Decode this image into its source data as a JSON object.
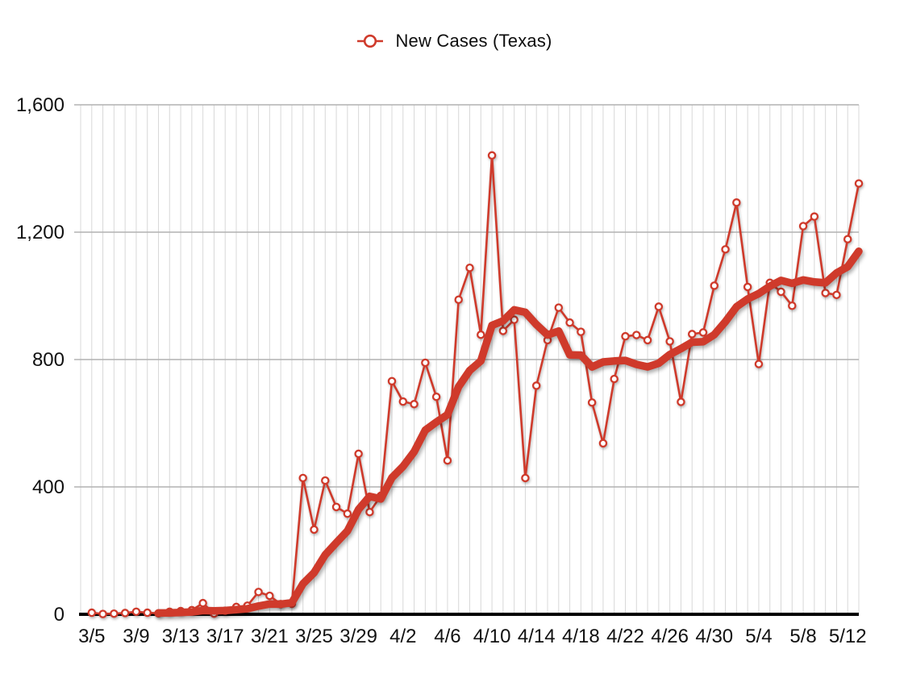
{
  "legend": {
    "label": "New Cases (Texas)"
  },
  "chart_data": {
    "type": "line",
    "title": "New Cases (Texas)",
    "legend_position": "top-center",
    "x": [
      "3/5",
      "3/6",
      "3/7",
      "3/8",
      "3/9",
      "3/10",
      "3/11",
      "3/12",
      "3/13",
      "3/14",
      "3/15",
      "3/16",
      "3/17",
      "3/18",
      "3/19",
      "3/20",
      "3/21",
      "3/22",
      "3/23",
      "3/24",
      "3/25",
      "3/26",
      "3/27",
      "3/28",
      "3/29",
      "3/30",
      "3/31",
      "4/1",
      "4/2",
      "4/3",
      "4/4",
      "4/5",
      "4/6",
      "4/7",
      "4/8",
      "4/9",
      "4/10",
      "4/11",
      "4/12",
      "4/13",
      "4/14",
      "4/15",
      "4/16",
      "4/17",
      "4/18",
      "4/19",
      "4/20",
      "4/21",
      "4/22",
      "4/23",
      "4/24",
      "4/25",
      "4/26",
      "4/27",
      "4/28",
      "4/29",
      "4/30",
      "5/1",
      "5/2",
      "5/3",
      "5/4",
      "5/5",
      "5/6",
      "5/7",
      "5/8",
      "5/9",
      "5/10",
      "5/11",
      "5/12",
      "5/13"
    ],
    "series": [
      {
        "name": "New Cases (Texas)",
        "style": "thin line with open circle markers",
        "values": [
          5,
          1,
          2,
          4,
          8,
          5,
          3,
          8,
          10,
          13,
          35,
          2,
          11,
          23,
          27,
          70,
          58,
          32,
          33,
          428,
          266,
          420,
          337,
          316,
          504,
          321,
          372,
          732,
          668,
          660,
          790,
          683,
          483,
          988,
          1088,
          878,
          1441,
          890,
          925,
          428,
          718,
          861,
          963,
          916,
          887,
          665,
          537,
          739,
          873,
          877,
          861,
          966,
          857,
          667,
          880,
          885,
          1032,
          1146,
          1293,
          1028,
          786,
          1041,
          1013,
          969,
          1219,
          1249,
          1009,
          1003,
          1178,
          1353
        ]
      },
      {
        "name": "trend",
        "style": "thick smooth line",
        "derived": "7-day moving average of daily values, plotted from 3/11 onward"
      }
    ],
    "x_tick_labels": [
      "3/5",
      "3/9",
      "3/13",
      "3/17",
      "3/21",
      "3/25",
      "3/29",
      "4/2",
      "4/6",
      "4/10",
      "4/14",
      "4/18",
      "4/22",
      "4/26",
      "4/30",
      "5/4",
      "5/8",
      "5/12"
    ],
    "x_tick_step": 4,
    "y_ticks": [
      0,
      400,
      800,
      1200,
      1600
    ],
    "y_tick_labels": [
      "0",
      "400",
      "800",
      "1,200",
      "1,600"
    ],
    "ylim": [
      0,
      1600
    ],
    "grid": {
      "vertical": "one line per day",
      "horizontal": "every 400 units"
    },
    "colors": {
      "series": "#cf3a2b",
      "marker_fill": "#ffffff",
      "grid_vertical": "#d8d8d8",
      "grid_horizontal": "#b2b2b2",
      "axis": "#000000",
      "text": "#111111",
      "background": "#ffffff"
    }
  }
}
